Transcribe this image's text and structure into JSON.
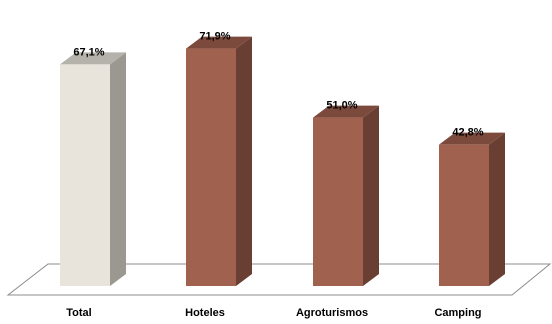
{
  "chart_data": {
    "type": "bar",
    "categories": [
      "Total",
      "Hoteles",
      "Agroturismos",
      "Camping"
    ],
    "values": [
      67.1,
      71.9,
      51.0,
      42.8
    ],
    "data_labels": [
      "67,1%",
      "71,9%",
      "51,0%",
      "42,8%"
    ],
    "ylim": [
      0,
      80
    ],
    "grid": false,
    "legend": "none",
    "style": "3d-column",
    "colors": {
      "highlight_front": "#e8e4dc",
      "highlight_side": "#9a9890",
      "highlight_top": "#b4b2aa",
      "bar_front": "#a0624f",
      "bar_side": "#6a3f33",
      "bar_top": "#7c4a3c",
      "floor_edge": "#8c8c8c"
    },
    "highlighted_category": "Total"
  }
}
